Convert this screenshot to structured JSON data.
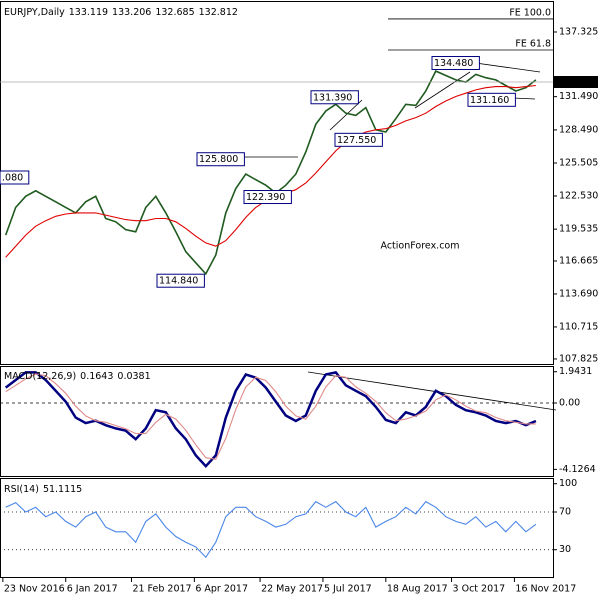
{
  "chart_data": [
    {
      "type": "line",
      "title": "EURJPY,Daily",
      "ohlc": [
        133.119,
        133.206,
        132.685,
        132.812
      ],
      "x": [
        "2016-11-25",
        "2016-12-02",
        "2016-12-09",
        "2016-12-16",
        "2016-12-23",
        "2016-12-30",
        "2017-01-06",
        "2017-01-13",
        "2017-01-20",
        "2017-01-27",
        "2017-02-03",
        "2017-02-10",
        "2017-02-17",
        "2017-02-24",
        "2017-03-03",
        "2017-03-10",
        "2017-03-17",
        "2017-03-24",
        "2017-03-31",
        "2017-04-07",
        "2017-04-14",
        "2017-04-21",
        "2017-04-28",
        "2017-05-05",
        "2017-05-12",
        "2017-05-19",
        "2017-05-26",
        "2017-06-02",
        "2017-06-09",
        "2017-06-16",
        "2017-06-23",
        "2017-06-30",
        "2017-07-07",
        "2017-07-14",
        "2017-07-21",
        "2017-07-28",
        "2017-08-04",
        "2017-08-11",
        "2017-08-18",
        "2017-08-25",
        "2017-09-01",
        "2017-09-08",
        "2017-09-15",
        "2017-09-22",
        "2017-09-29",
        "2017-10-06",
        "2017-10-13",
        "2017-10-20",
        "2017-10-27",
        "2017-11-03",
        "2017-11-10",
        "2017-11-17",
        "2017-11-24",
        "2017-12-01"
      ],
      "series": [
        {
          "color": "#1f5a1f",
          "values": [
            119,
            121.5,
            122.5,
            123,
            122.5,
            122,
            121.5,
            121,
            122,
            122.5,
            120.5,
            120.2,
            119.5,
            119.3,
            121.5,
            122.5,
            121,
            119.3,
            117.5,
            116.5,
            115.5,
            117.2,
            121,
            123.2,
            124.5,
            124,
            123.5,
            122.8,
            123.5,
            124.5,
            126.5,
            129,
            130.2,
            130.8,
            130,
            129.8,
            130.5,
            128.5,
            128.3,
            129.5,
            130.8,
            130.7,
            132,
            133.8,
            133.4,
            133,
            132.8,
            133.5,
            133.2,
            133,
            132.5,
            132,
            132.3,
            133
          ]
        },
        {
          "color": "#e00000",
          "values": [
            117,
            118,
            119,
            119.8,
            120.3,
            120.7,
            120.9,
            121,
            121,
            121,
            120.8,
            120.6,
            120.4,
            120.3,
            120.3,
            120.5,
            120.5,
            120.2,
            119.6,
            118.9,
            118.3,
            118,
            118.5,
            119.5,
            120.6,
            121.5,
            122.1,
            122.5,
            122.8,
            123.1,
            123.7,
            124.6,
            125.6,
            126.6,
            127.4,
            127.9,
            128.3,
            128.5,
            128.6,
            128.9,
            129.3,
            129.6,
            130,
            130.6,
            131.1,
            131.5,
            131.8,
            132.1,
            132.3,
            132.4,
            132.4,
            132.3,
            132.4,
            132.5
          ]
        }
      ],
      "xlim": [
        "2016-11-21",
        "2017-12-13"
      ],
      "ylim": [
        107.28,
        140.03
      ],
      "yticks": [
        107.825,
        110.715,
        {
          "value": 113.69,
          "label": "113.690"
        },
        116.665,
        119.535,
        {
          "value": 122.53,
          "label": "122.530"
        },
        125.505,
        {
          "value": 128.49,
          "label": "128.490"
        },
        {
          "value": 131.49,
          "label": "131.490"
        },
        137.325
      ],
      "annotations": [
        {
          "value": 134.48,
          "label": "134.480"
        },
        {
          "value": 131.39,
          "label": "131.390"
        },
        {
          "value": 127.55,
          "label": "127.550"
        },
        {
          "value": 125.8,
          "label": "125.800"
        },
        {
          "value": 122.39,
          "label": "122.390"
        },
        {
          "value": 114.84,
          "label": "114.840"
        },
        {
          "value": 131.16,
          "label": "131.160"
        },
        {
          "label": ".080"
        }
      ],
      "levels": [
        {
          "value": 138.5,
          "label": "FE 100.0"
        },
        {
          "value": 135.7,
          "label": "FE 61.8"
        }
      ],
      "watermark": "ActionForex.com"
    },
    {
      "type": "line",
      "title": "MACD(12,26,9)",
      "readings": [
        0.1643,
        0.0381
      ],
      "x": [
        "2016-11-25",
        "2016-12-02",
        "2016-12-09",
        "2016-12-16",
        "2016-12-23",
        "2016-12-30",
        "2017-01-06",
        "2017-01-13",
        "2017-01-20",
        "2017-01-27",
        "2017-02-03",
        "2017-02-10",
        "2017-02-17",
        "2017-02-24",
        "2017-03-03",
        "2017-03-10",
        "2017-03-17",
        "2017-03-24",
        "2017-03-31",
        "2017-04-07",
        "2017-04-14",
        "2017-04-21",
        "2017-04-28",
        "2017-05-05",
        "2017-05-12",
        "2017-05-19",
        "2017-05-26",
        "2017-06-02",
        "2017-06-09",
        "2017-06-16",
        "2017-06-23",
        "2017-06-30",
        "2017-07-07",
        "2017-07-14",
        "2017-07-21",
        "2017-07-28",
        "2017-08-04",
        "2017-08-11",
        "2017-08-18",
        "2017-08-25",
        "2017-09-01",
        "2017-09-08",
        "2017-09-15",
        "2017-09-22",
        "2017-09-29",
        "2017-10-06",
        "2017-10-13",
        "2017-10-20",
        "2017-10-27",
        "2017-11-03",
        "2017-11-10",
        "2017-11-17",
        "2017-11-24",
        "2017-12-01"
      ],
      "series": [
        {
          "color": "#000080",
          "values": [
            0.96,
            1.43,
            1.9,
            1.9,
            1.43,
            0.76,
            0.09,
            -0.91,
            -1.25,
            -1.1,
            -1.38,
            -1.58,
            -1.72,
            -2.25,
            -1.58,
            -0.45,
            -0.58,
            -1.58,
            -2.25,
            -3.26,
            -3.93,
            -3.26,
            -0.91,
            0.76,
            1.77,
            1.57,
            0.96,
            0.09,
            -0.78,
            -1.12,
            -0.78,
            0.76,
            1.77,
            1.9,
            1.1,
            0.76,
            0.43,
            -0.24,
            -1.05,
            -1.25,
            -0.58,
            -0.78,
            -0.24,
            0.76,
            0.43,
            -0.11,
            -0.45,
            -0.58,
            -0.78,
            -1.12,
            -1.25,
            -1.12,
            -1.38,
            -1.12
          ]
        },
        {
          "color": "#e08a8a",
          "values": [
            0.7,
            1.1,
            1.5,
            1.8,
            1.7,
            1.2,
            0.6,
            -0.2,
            -0.8,
            -1.1,
            -1.2,
            -1.4,
            -1.6,
            -1.9,
            -1.9,
            -1.2,
            -0.7,
            -1.0,
            -1.7,
            -2.6,
            -3.4,
            -3.5,
            -2.2,
            -0.4,
            1.0,
            1.6,
            1.4,
            0.7,
            -0.2,
            -0.8,
            -1.0,
            -0.2,
            1.0,
            1.7,
            1.6,
            1.0,
            0.6,
            0.1,
            -0.6,
            -1.1,
            -1.0,
            -0.8,
            -0.5,
            0.2,
            0.5,
            0.2,
            -0.2,
            -0.5,
            -0.6,
            -0.9,
            -1.1,
            -1.2,
            -1.3,
            -1.3
          ]
        }
      ],
      "xlim": [
        "2016-11-21",
        "2017-12-13"
      ],
      "ylim": [
        -4.6,
        2.3
      ],
      "yticks": [
        1.9431,
        {
          "value": 0,
          "label": "0.00"
        },
        -4.1264
      ],
      "dashed_levels": [
        0
      ]
    },
    {
      "type": "line",
      "title": "RSI(14)",
      "readings": [
        51.1115
      ],
      "x": [
        "2016-11-25",
        "2016-12-02",
        "2016-12-09",
        "2016-12-16",
        "2016-12-23",
        "2016-12-30",
        "2017-01-06",
        "2017-01-13",
        "2017-01-20",
        "2017-01-27",
        "2017-02-03",
        "2017-02-10",
        "2017-02-17",
        "2017-02-24",
        "2017-03-03",
        "2017-03-10",
        "2017-03-17",
        "2017-03-24",
        "2017-03-31",
        "2017-04-07",
        "2017-04-14",
        "2017-04-21",
        "2017-04-28",
        "2017-05-05",
        "2017-05-12",
        "2017-05-19",
        "2017-05-26",
        "2017-06-02",
        "2017-06-09",
        "2017-06-16",
        "2017-06-23",
        "2017-06-30",
        "2017-07-07",
        "2017-07-14",
        "2017-07-21",
        "2017-07-28",
        "2017-08-04",
        "2017-08-11",
        "2017-08-18",
        "2017-08-25",
        "2017-09-01",
        "2017-09-08",
        "2017-09-15",
        "2017-09-22",
        "2017-09-29",
        "2017-10-06",
        "2017-10-13",
        "2017-10-20",
        "2017-10-27",
        "2017-11-03",
        "2017-11-10",
        "2017-11-17",
        "2017-11-24",
        "2017-12-01"
      ],
      "series": [
        {
          "color": "#4a86e8",
          "values": [
            75,
            80,
            70,
            75,
            65,
            70,
            60,
            54,
            65,
            70,
            54,
            49,
            49,
            38,
            60,
            68,
            54,
            44,
            38,
            33,
            22,
            38,
            65,
            75,
            75,
            65,
            60,
            54,
            57,
            65,
            68,
            81,
            75,
            81,
            70,
            65,
            75,
            54,
            60,
            65,
            75,
            68,
            81,
            75,
            65,
            60,
            57,
            65,
            54,
            60,
            49,
            60,
            49,
            57
          ]
        }
      ],
      "xlim": [
        "2016-11-21",
        "2017-12-13"
      ],
      "ylim": [
        0,
        105
      ],
      "yticks": [
        100,
        70,
        30
      ],
      "dashed_levels": [
        70,
        30
      ],
      "xticks": [
        {
          "value": "2016-11-23",
          "label": "23 Nov 2016"
        },
        {
          "value": "2017-01-06",
          "label": "6 Jan 2017"
        },
        {
          "value": "2017-02-21",
          "label": "21 Feb 2017"
        },
        {
          "value": "2017-04-06",
          "label": "6 Apr 2017"
        },
        {
          "value": "2017-05-22",
          "label": "22 May 2017"
        },
        {
          "value": "2017-07-05",
          "label": "5 Jul 2017"
        },
        {
          "value": "2017-08-18",
          "label": "18 Aug 2017"
        },
        {
          "value": "2017-10-03",
          "label": "3 Oct 2017"
        },
        {
          "value": "2017-11-16",
          "label": "16 Nov 2017"
        }
      ]
    }
  ]
}
